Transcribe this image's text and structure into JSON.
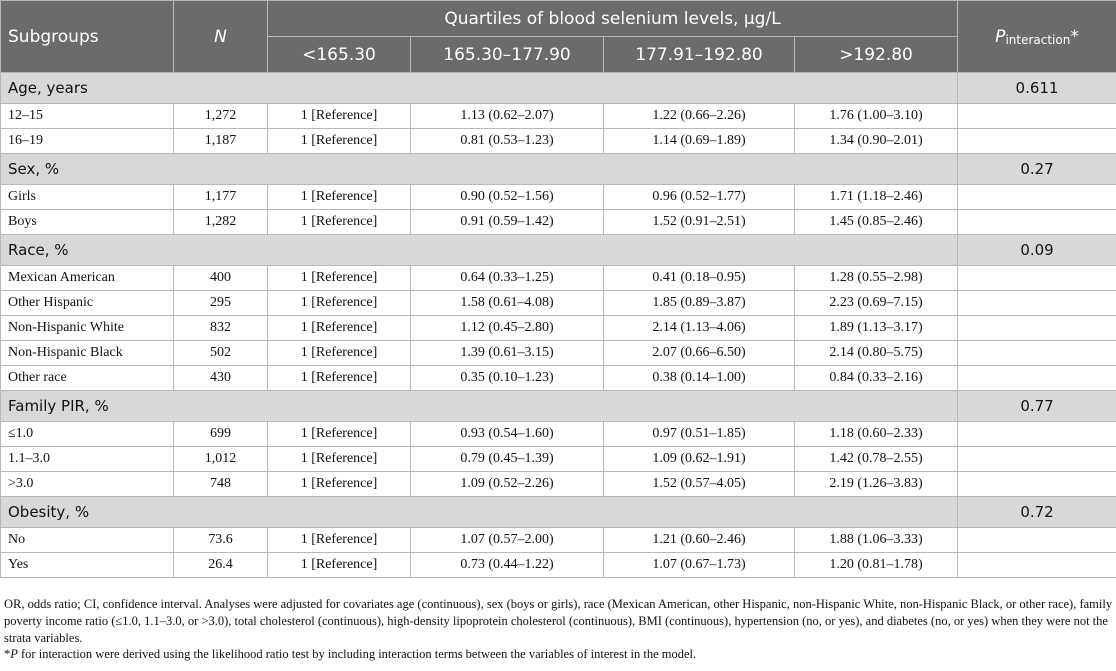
{
  "header": {
    "subgroups": "Subgroups",
    "n": "N",
    "quartiles_title": "Quartiles of blood selenium levels, μg/L",
    "p_main": "P",
    "p_sub": "interaction",
    "p_star": "*",
    "quartiles": [
      "<165.30",
      "165.30–177.90",
      "177.91–192.80",
      ">192.80"
    ]
  },
  "sections": [
    {
      "label": "Age, years",
      "p": "0.611",
      "rows": [
        {
          "label": "12–15",
          "n": "1,272",
          "q1": "1 [Reference]",
          "q2": "1.13 (0.62–2.07)",
          "q3": "1.22 (0.66–2.26)",
          "q4": "1.76 (1.00–3.10)"
        },
        {
          "label": "16–19",
          "n": "1,187",
          "q1": "1 [Reference]",
          "q2": "0.81 (0.53–1.23)",
          "q3": "1.14 (0.69–1.89)",
          "q4": "1.34 (0.90–2.01)"
        }
      ]
    },
    {
      "label": "Sex, %",
      "p": "0.27",
      "rows": [
        {
          "label": "Girls",
          "n": "1,177",
          "q1": "1 [Reference]",
          "q2": "0.90 (0.52–1.56)",
          "q3": "0.96 (0.52–1.77)",
          "q4": "1.71 (1.18–2.46)"
        },
        {
          "label": "Boys",
          "n": "1,282",
          "q1": "1 [Reference]",
          "q2": "0.91 (0.59–1.42)",
          "q3": "1.52 (0.91–2.51)",
          "q4": "1.45 (0.85–2.46)"
        }
      ]
    },
    {
      "label": "Race, %",
      "p": "0.09",
      "rows": [
        {
          "label": "Mexican American",
          "n": "400",
          "q1": "1 [Reference]",
          "q2": "0.64 (0.33–1.25)",
          "q3": "0.41 (0.18–0.95)",
          "q4": "1.28 (0.55–2.98)"
        },
        {
          "label": "Other Hispanic",
          "n": "295",
          "q1": "1 [Reference]",
          "q2": "1.58 (0.61–4.08)",
          "q3": "1.85 (0.89–3.87)",
          "q4": "2.23 (0.69–7.15)"
        },
        {
          "label": "Non-Hispanic White",
          "n": "832",
          "q1": "1 [Reference]",
          "q2": "1.12 (0.45–2.80)",
          "q3": "2.14 (1.13–4.06)",
          "q4": "1.89 (1.13–3.17)"
        },
        {
          "label": "Non-Hispanic Black",
          "n": "502",
          "q1": "1 [Reference]",
          "q2": "1.39 (0.61–3.15)",
          "q3": "2.07 (0.66–6.50)",
          "q4": "2.14 (0.80–5.75)"
        },
        {
          "label": "Other race",
          "n": "430",
          "q1": "1 [Reference]",
          "q2": "0.35 (0.10–1.23)",
          "q3": "0.38 (0.14–1.00)",
          "q4": "0.84 (0.33–2.16)"
        }
      ]
    },
    {
      "label": "Family PIR, %",
      "p": "0.77",
      "rows": [
        {
          "label": "≤1.0",
          "n": "699",
          "q1": "1 [Reference]",
          "q2": "0.93 (0.54–1.60)",
          "q3": "0.97 (0.51–1.85)",
          "q4": "1.18 (0.60–2.33)"
        },
        {
          "label": "1.1–3.0",
          "n": "1,012",
          "q1": "1 [Reference]",
          "q2": "0.79 (0.45–1.39)",
          "q3": "1.09 (0.62–1.91)",
          "q4": "1.42 (0.78–2.55)"
        },
        {
          "label": ">3.0",
          "n": "748",
          "q1": "1 [Reference]",
          "q2": "1.09 (0.52–2.26)",
          "q3": "1.52 (0.57–4.05)",
          "q4": "2.19 (1.26–3.83)"
        }
      ]
    },
    {
      "label": "Obesity, %",
      "p": "0.72",
      "rows": [
        {
          "label": "No",
          "n": "73.6",
          "q1": "1 [Reference]",
          "q2": "1.07 (0.57–2.00)",
          "q3": "1.21 (0.60–2.46)",
          "q4": "1.88 (1.06–3.33)"
        },
        {
          "label": "Yes",
          "n": "26.4",
          "q1": "1 [Reference]",
          "q2": "0.73 (0.44–1.22)",
          "q3": "1.07 (0.67–1.73)",
          "q4": "1.20 (0.81–1.78)"
        }
      ]
    }
  ],
  "footnotes": {
    "abbrev": "OR, odds ratio; CI, confidence interval. Analyses were adjusted for covariates age (continuous), sex (boys or girls), race (Mexican American, other Hispanic, non-Hispanic White, non-Hispanic Black, or other race), family poverty income ratio (≤1.0, 1.1–3.0, or >3.0), total cholesterol (continuous), high-density lipoprotein cholesterol (continuous), BMI (continuous), hypertension (no, or yes), and diabetes (no, or yes) when they were not the strata variables.",
    "star_prefix": "*",
    "star_p": "P",
    "star_text": " for interaction were derived using the likelihood ratio test by including interaction terms between the variables of interest in the model."
  }
}
